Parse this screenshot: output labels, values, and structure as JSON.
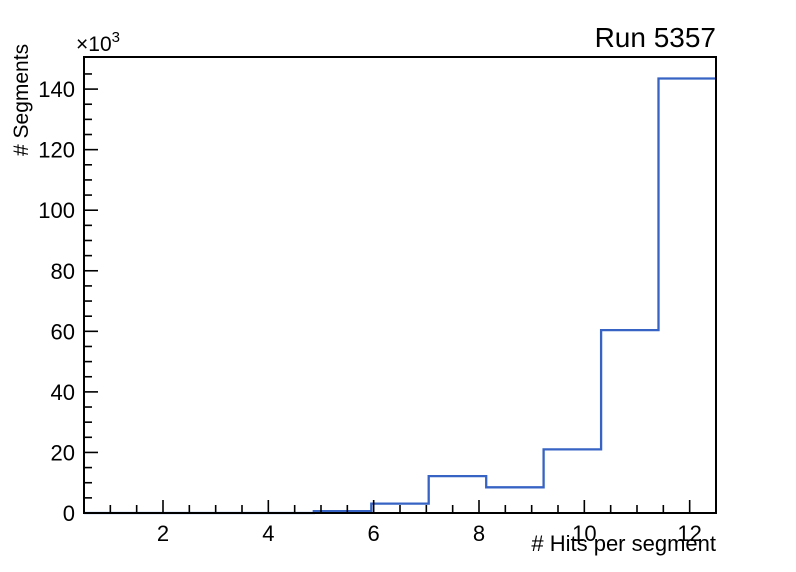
{
  "page": {
    "background": "#ffffff",
    "text_color": "#000000"
  },
  "chart_data": {
    "type": "line",
    "subtype": "histogram-step",
    "title": "Run 5357",
    "xlabel": "# Hits per segment",
    "ylabel": "# Segments",
    "y_exponent_base": "×10",
    "y_exponent_power": "3",
    "bin_edges": [
      0.5,
      1.591,
      2.682,
      3.773,
      4.864,
      5.955,
      7.045,
      8.136,
      9.227,
      10.318,
      11.409,
      12.5
    ],
    "values": [
      0,
      0,
      0,
      0,
      600,
      3100,
      12200,
      8500,
      21000,
      60400,
      143500
    ],
    "xlim": [
      0.5,
      12.5
    ],
    "ylim": [
      0,
      150600
    ],
    "x_major_ticks": [
      2,
      4,
      6,
      8,
      10,
      12
    ],
    "x_tick_labels": [
      "2",
      "4",
      "6",
      "8",
      "10",
      "12"
    ],
    "x_minor_step": 0.5,
    "y_major_ticks": [
      0,
      20000,
      40000,
      60000,
      80000,
      100000,
      120000,
      140000
    ],
    "y_tick_labels": [
      "0",
      "20",
      "40",
      "60",
      "80",
      "100",
      "120",
      "140"
    ],
    "y_minor_step": 5000,
    "grid": false,
    "legend": null,
    "line_color": "#3764c4",
    "axis_color": "#000000",
    "background_color": "#ffffff"
  }
}
